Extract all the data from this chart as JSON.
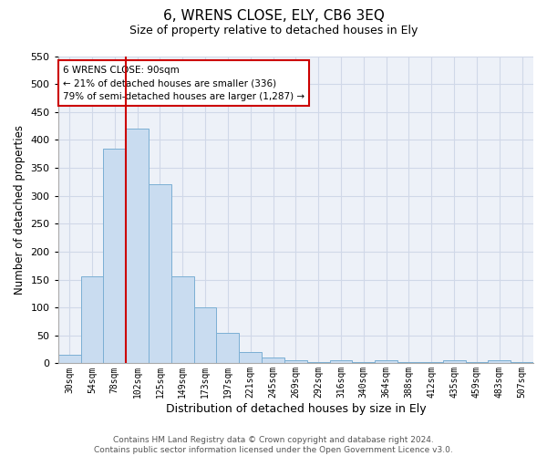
{
  "title": "6, WRENS CLOSE, ELY, CB6 3EQ",
  "subtitle": "Size of property relative to detached houses in Ely",
  "xlabel": "Distribution of detached houses by size in Ely",
  "ylabel": "Number of detached properties",
  "categories": [
    "30sqm",
    "54sqm",
    "78sqm",
    "102sqm",
    "125sqm",
    "149sqm",
    "173sqm",
    "197sqm",
    "221sqm",
    "245sqm",
    "269sqm",
    "292sqm",
    "316sqm",
    "340sqm",
    "364sqm",
    "388sqm",
    "412sqm",
    "435sqm",
    "459sqm",
    "483sqm",
    "507sqm"
  ],
  "values": [
    15,
    155,
    385,
    420,
    320,
    155,
    100,
    55,
    20,
    10,
    5,
    3,
    5,
    3,
    5,
    3,
    3,
    5,
    3,
    5,
    3
  ],
  "bar_color": "#c9dcf0",
  "bar_edge_color": "#7bafd4",
  "grid_color": "#d0d8e8",
  "background_color": "#edf1f8",
  "ylim": [
    0,
    550
  ],
  "yticks": [
    0,
    50,
    100,
    150,
    200,
    250,
    300,
    350,
    400,
    450,
    500,
    550
  ],
  "annotation_line1": "6 WRENS CLOSE: 90sqm",
  "annotation_line2": "← 21% of detached houses are smaller (336)",
  "annotation_line3": "79% of semi-detached houses are larger (1,287) →",
  "annotation_box_color": "#ffffff",
  "annotation_box_edge": "#cc0000",
  "redline_index": 3,
  "footer_line1": "Contains HM Land Registry data © Crown copyright and database right 2024.",
  "footer_line2": "Contains public sector information licensed under the Open Government Licence v3.0."
}
